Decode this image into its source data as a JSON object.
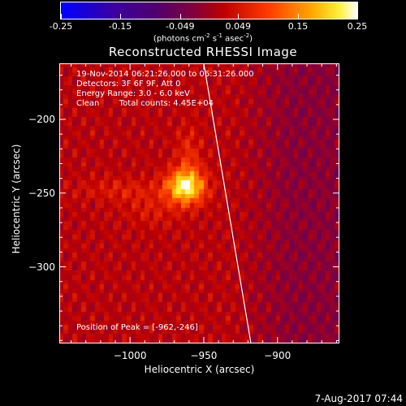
{
  "colorbar": {
    "ticks": [
      "-0.25",
      "-0.15",
      "-0.049",
      "0.049",
      "0.15",
      "0.25"
    ],
    "tick_values": [
      -0.25,
      -0.15,
      -0.049,
      0.049,
      0.15,
      0.25
    ],
    "range": [
      -0.25,
      0.25
    ],
    "unit_main": "(photons cm",
    "unit_sup1": "-2",
    "unit_mid": " s",
    "unit_sup2": "-1",
    "unit_end": " asec",
    "unit_sup3": "-2",
    "unit_close": ")",
    "colormap": "rhessi-heat"
  },
  "chart_data": {
    "type": "heatmap",
    "title": "Reconstructed RHESSI Image",
    "xlabel": "Heliocentric X (arcsec)",
    "ylabel": "Heliocentric Y (arcsec)",
    "x_ticks": [
      -1000,
      -950,
      -900
    ],
    "y_ticks": [
      -200,
      -250,
      -300
    ],
    "xlim": [
      -1048,
      -858
    ],
    "ylim": [
      -352,
      -162
    ],
    "peak": {
      "x": -962,
      "y": -246,
      "value": 0.25
    },
    "limb_line": [
      [
        -950,
        -162
      ],
      [
        -918,
        -352
      ]
    ],
    "annotations": {
      "time": "19-Nov-2014 06:21:26.000 to 06:31:26.000",
      "detectors": "Detectors: 3F 6F 9F, Att 0",
      "energy": "Energy Range: 3.0 - 6.0 keV",
      "algorithm": "Clean",
      "counts": "Total counts: 4.45E+04",
      "peak_text": "Position of Peak = [-962,-246]"
    }
  },
  "timestamp": "7-Aug-2017 07:44"
}
